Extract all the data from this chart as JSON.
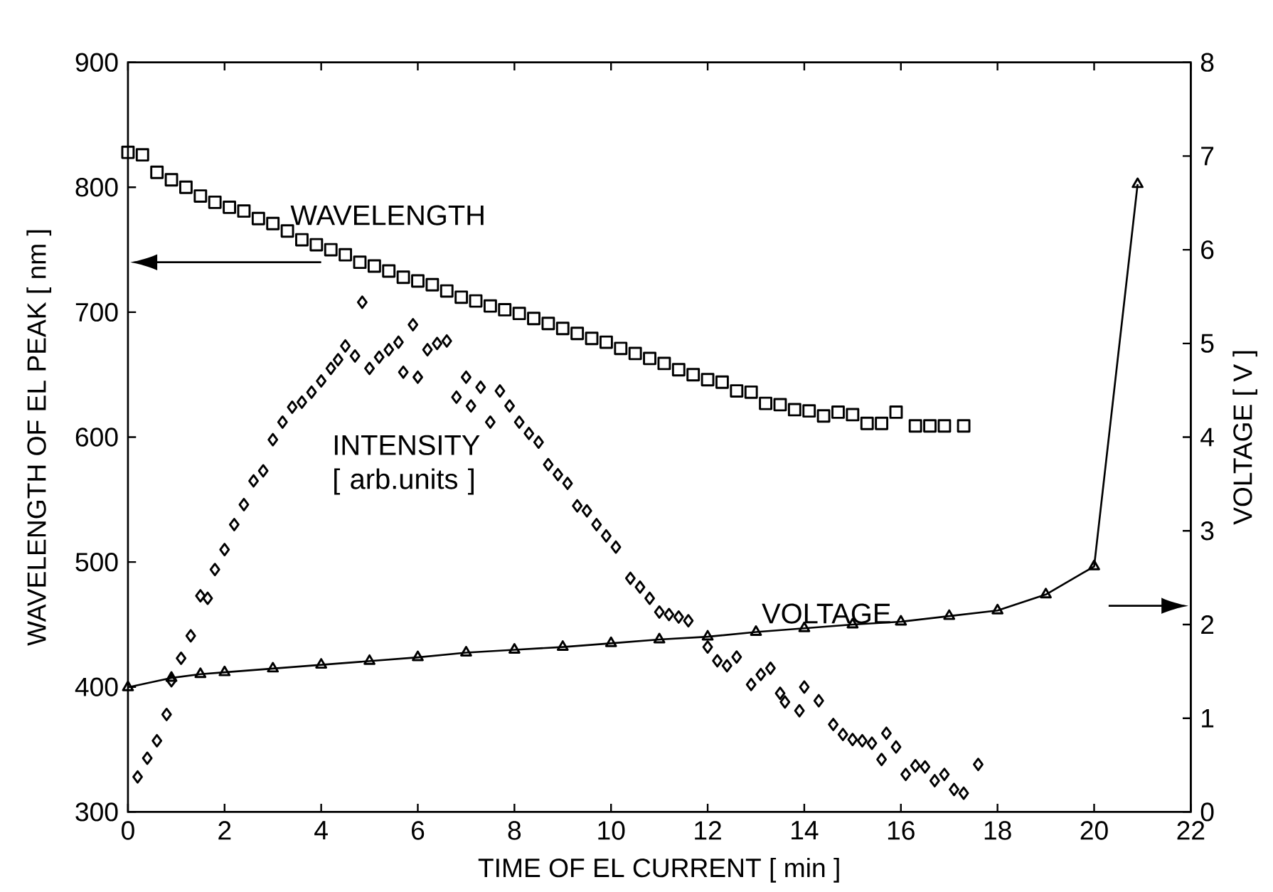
{
  "chart_data": {
    "type": "scatter",
    "xlabel": "TIME OF EL CURRENT [ min ]",
    "ylabel": "WAVELENGTH OF EL PEAK [ nm ]",
    "y2label": "VOLTAGE [ V ]",
    "xlim": [
      0,
      22
    ],
    "xticks": [
      0,
      2,
      4,
      6,
      8,
      10,
      12,
      14,
      16,
      18,
      20,
      22
    ],
    "ylim": [
      300,
      900
    ],
    "yticks": [
      300,
      400,
      500,
      600,
      700,
      800,
      900
    ],
    "y2lim": [
      0,
      8
    ],
    "y2ticks": [
      0,
      1,
      2,
      3,
      4,
      5,
      6,
      7,
      8
    ],
    "grid": false,
    "legend": false,
    "series": [
      {
        "name": "WAVELENGTH",
        "marker": "square",
        "color": "#000000",
        "x": [
          0,
          0.3,
          0.6,
          0.9,
          1.2,
          1.5,
          1.8,
          2.1,
          2.4,
          2.7,
          3.0,
          3.3,
          3.6,
          3.9,
          4.2,
          4.5,
          4.8,
          5.1,
          5.4,
          5.7,
          6.0,
          6.3,
          6.6,
          6.9,
          7.2,
          7.5,
          7.8,
          8.1,
          8.4,
          8.7,
          9.0,
          9.3,
          9.6,
          9.9,
          10.2,
          10.5,
          10.8,
          11.1,
          11.4,
          11.7,
          12.0,
          12.3,
          12.6,
          12.9,
          13.2,
          13.5,
          13.8,
          14.1,
          14.4,
          14.7,
          15.0,
          15.3,
          15.6,
          15.9,
          16.3,
          16.6,
          16.9,
          17.3
        ],
        "values": [
          828,
          826,
          812,
          806,
          800,
          793,
          788,
          784,
          781,
          775,
          771,
          765,
          758,
          754,
          750,
          746,
          740,
          737,
          733,
          728,
          725,
          722,
          717,
          712,
          709,
          705,
          702,
          699,
          695,
          691,
          687,
          683,
          679,
          676,
          671,
          667,
          663,
          659,
          654,
          650,
          646,
          644,
          637,
          636,
          627,
          626,
          622,
          621,
          617,
          620,
          618,
          611,
          611,
          620,
          609,
          609,
          609,
          609
        ]
      },
      {
        "name": "INTENSITY [ arb.units ]",
        "marker": "diamond",
        "color": "#000000",
        "x": [
          0.2,
          0.4,
          0.6,
          0.8,
          0.9,
          1.1,
          1.3,
          1.5,
          1.65,
          1.8,
          2.0,
          2.2,
          2.4,
          2.6,
          2.8,
          3.0,
          3.2,
          3.4,
          3.6,
          3.8,
          4.0,
          4.2,
          4.35,
          4.5,
          4.7,
          4.85,
          5.0,
          5.2,
          5.4,
          5.6,
          5.7,
          5.9,
          6.0,
          6.2,
          6.4,
          6.6,
          6.8,
          7.0,
          7.1,
          7.3,
          7.5,
          7.7,
          7.9,
          8.1,
          8.3,
          8.5,
          8.7,
          8.9,
          9.1,
          9.3,
          9.5,
          9.7,
          9.9,
          10.1,
          10.4,
          10.6,
          10.8,
          11.0,
          11.2,
          11.4,
          11.6,
          12.0,
          12.2,
          12.4,
          12.6,
          12.9,
          13.1,
          13.3,
          13.5,
          13.6,
          13.9,
          14.0,
          14.3,
          14.6,
          14.8,
          15.0,
          15.2,
          15.4,
          15.6,
          15.7,
          15.9,
          16.1,
          16.3,
          16.5,
          16.7,
          16.9,
          17.1,
          17.3,
          17.6
        ],
        "values": [
          328,
          343,
          357,
          378,
          405,
          423,
          441,
          473,
          471,
          494,
          510,
          530,
          546,
          565,
          573,
          598,
          612,
          624,
          628,
          636,
          645,
          655,
          662,
          673,
          665,
          708,
          655,
          664,
          670,
          676,
          652,
          690,
          648,
          670,
          675,
          677,
          632,
          648,
          625,
          640,
          612,
          637,
          625,
          612,
          603,
          596,
          578,
          570,
          563,
          545,
          541,
          530,
          521,
          512,
          487,
          480,
          471,
          460,
          458,
          456,
          453,
          432,
          421,
          417,
          424,
          402,
          410,
          415,
          395,
          388,
          381,
          400,
          389,
          370,
          362,
          358,
          357,
          355,
          342,
          363,
          352,
          330,
          337,
          336,
          325,
          330,
          318,
          315,
          338
        ]
      },
      {
        "name": "VOLTAGE",
        "type": "line",
        "axis": "y2",
        "marker": "triangle",
        "line_style": "solid",
        "color": "#000000",
        "x": [
          0,
          0.9,
          1.5,
          2,
          3,
          4,
          5,
          6,
          7,
          8,
          9,
          10,
          11,
          12,
          13,
          14,
          15,
          16,
          17,
          18,
          19,
          20,
          20.9
        ],
        "values": [
          1.33,
          1.43,
          1.47,
          1.49,
          1.53,
          1.57,
          1.61,
          1.65,
          1.7,
          1.73,
          1.76,
          1.8,
          1.84,
          1.87,
          1.92,
          1.96,
          2.0,
          2.03,
          2.09,
          2.15,
          2.32,
          2.62,
          6.7
        ]
      }
    ]
  }
}
